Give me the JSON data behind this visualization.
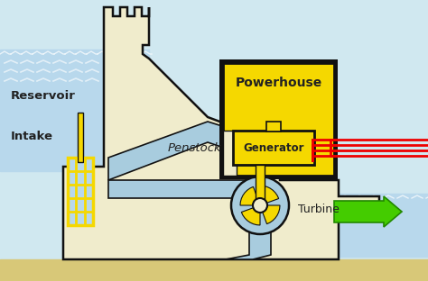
{
  "bg_top": "#d0e8f0",
  "bg_water_color": "#b8d8ec",
  "dam_fill": "#f0eccc",
  "dam_edge": "#111111",
  "yellow_bright": "#f5d800",
  "yellow_med": "#f0e060",
  "green_color": "#44cc00",
  "red_color": "#ee0000",
  "text_dark": "#222222",
  "penstock_water": "#a8ccde",
  "tailwater": "#a8ccde",
  "sand_color": "#d8c878",
  "reservoir_label": "Reservoir",
  "intake_label": "Intake",
  "penstock_label": "Penstock",
  "powerhouse_label": "Powerhouse",
  "generator_label": "Generator",
  "turbine_label": "Turbine",
  "figsize": [
    4.74,
    3.12
  ],
  "dpi": 100
}
